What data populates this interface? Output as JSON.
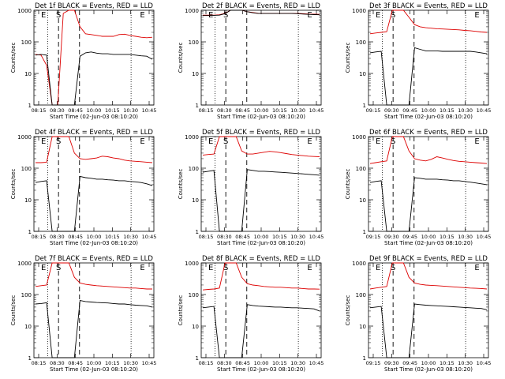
{
  "colors": {
    "events": "#000000",
    "lld": "#dd0000",
    "axis": "#000000"
  },
  "chart_data": [
    {
      "type": "line",
      "title": "Det 1f BLACK = Events, RED = LLD",
      "xlabel": "Start Time (02-Jun-03 08:10:20)",
      "ylabel": "Counts/sec",
      "yscale": "log",
      "ylim": [
        1,
        1000
      ],
      "y_ticks": [
        "1",
        "10",
        "100",
        "1000"
      ],
      "x_ticks": [
        "08:15",
        "08:30",
        "08:45",
        "10:00",
        "10:15",
        "10:30",
        "10:45"
      ],
      "markers": [
        "E",
        "S",
        "E"
      ],
      "series": [
        {
          "values": [
            40,
            38,
            18,
            1,
            1,
            800,
            1000,
            1000,
            300,
            180,
            170,
            160,
            150,
            150,
            150,
            170,
            175,
            160,
            150,
            140,
            135,
            140
          ]
        },
        {
          "values": [
            38,
            40,
            38,
            1,
            1,
            1,
            1,
            1,
            35,
            45,
            48,
            44,
            42,
            42,
            40,
            40,
            40,
            40,
            38,
            36,
            35,
            28
          ]
        }
      ]
    },
    {
      "type": "line",
      "title": "Det 2f BLACK = Events, RED = LLD",
      "xlabel": "Start Time (02-Jun-03 08:10:20)",
      "ylabel": "Counts/sec",
      "yscale": "log",
      "ylim": [
        1,
        1000
      ],
      "y_ticks": [
        "1",
        "10",
        "100",
        "1000"
      ],
      "x_ticks": [
        "08:15",
        "08:30",
        "08:45",
        "10:00",
        "10:15",
        "10:30",
        "10:45"
      ],
      "markers": [
        "E",
        "S",
        "E"
      ],
      "series": [
        {
          "values": [
            700,
            700,
            700,
            720,
            800,
            1000,
            1000,
            1000,
            900,
            850,
            800,
            800,
            800,
            800,
            800,
            800,
            800,
            790,
            780,
            760,
            750,
            740
          ]
        },
        {
          "values": [
            680,
            680,
            690,
            700,
            780,
            1000,
            1000,
            1000,
            900,
            830,
            790,
            790,
            790,
            790,
            790,
            790,
            790,
            780,
            760,
            740,
            730,
            720
          ]
        }
      ]
    },
    {
      "type": "line",
      "title": "Det 3f BLACK = Events, RED = LLD",
      "xlabel": "Start Time (02-Jun-03 08:10:20)",
      "ylabel": "Counts/sec",
      "yscale": "log",
      "ylim": [
        1,
        1000
      ],
      "y_ticks": [
        "1",
        "10",
        "100",
        "1000"
      ],
      "x_ticks": [
        "09:15",
        "09:30",
        "09:45",
        "10:00",
        "10:15",
        "10:30",
        "10:45"
      ],
      "markers": [
        "E",
        "S",
        "E"
      ],
      "series": [
        {
          "values": [
            180,
            190,
            200,
            210,
            1000,
            1000,
            1000,
            600,
            350,
            300,
            280,
            270,
            260,
            255,
            250,
            245,
            240,
            230,
            225,
            215,
            205,
            200
          ]
        },
        {
          "values": [
            45,
            48,
            50,
            1,
            1,
            1,
            1,
            1,
            65,
            58,
            52,
            52,
            52,
            50,
            50,
            50,
            50,
            50,
            50,
            48,
            45,
            42
          ]
        }
      ]
    },
    {
      "type": "line",
      "title": "Det 4f BLACK = Events, RED = LLD",
      "xlabel": "Start Time (02-Jun-03 08:10:20)",
      "ylabel": "Counts/sec",
      "yscale": "log",
      "ylim": [
        1,
        1000
      ],
      "y_ticks": [
        "1",
        "10",
        "100",
        "1000"
      ],
      "x_ticks": [
        "08:15",
        "08:30",
        "08:45",
        "10:00",
        "10:15",
        "10:30",
        "10:45"
      ],
      "markers": [
        "E",
        "S",
        "E"
      ],
      "series": [
        {
          "values": [
            150,
            150,
            155,
            1000,
            1000,
            1000,
            1000,
            300,
            200,
            190,
            200,
            210,
            240,
            230,
            210,
            200,
            180,
            170,
            165,
            160,
            155,
            150
          ]
        },
        {
          "values": [
            35,
            38,
            40,
            1,
            1,
            1,
            1,
            1,
            55,
            50,
            48,
            45,
            45,
            43,
            42,
            40,
            40,
            38,
            37,
            35,
            32,
            28
          ]
        }
      ]
    },
    {
      "type": "line",
      "title": "Det 5f BLACK = Events, RED = LLD",
      "xlabel": "Start Time (02-Jun-03 08:10:20)",
      "ylabel": "Counts/sec",
      "yscale": "log",
      "ylim": [
        1,
        1000
      ],
      "y_ticks": [
        "1",
        "10",
        "100",
        "1000"
      ],
      "x_ticks": [
        "08:15",
        "08:30",
        "08:45",
        "10:00",
        "10:15",
        "10:30",
        "10:45"
      ],
      "markers": [
        "E",
        "S",
        "E"
      ],
      "series": [
        {
          "values": [
            260,
            270,
            280,
            1000,
            1000,
            1000,
            1000,
            350,
            280,
            280,
            300,
            320,
            340,
            330,
            310,
            290,
            270,
            260,
            250,
            240,
            235,
            230
          ]
        },
        {
          "values": [
            75,
            80,
            85,
            1,
            1,
            1,
            1,
            1,
            90,
            85,
            80,
            80,
            78,
            76,
            74,
            72,
            70,
            68,
            66,
            64,
            62,
            60
          ]
        }
      ]
    },
    {
      "type": "line",
      "title": "Det 6f BLACK = Events, RED = LLD",
      "xlabel": "Start Time (02-Jun-03 08:10:20)",
      "ylabel": "Counts/sec",
      "yscale": "log",
      "ylim": [
        1,
        1000
      ],
      "y_ticks": [
        "1",
        "10",
        "100",
        "1000"
      ],
      "x_ticks": [
        "09:15",
        "09:30",
        "09:45",
        "10:00",
        "10:15",
        "10:30",
        "10:45"
      ],
      "markers": [
        "E",
        "S",
        "E"
      ],
      "series": [
        {
          "values": [
            140,
            150,
            160,
            170,
            1000,
            1000,
            1000,
            350,
            200,
            180,
            170,
            190,
            230,
            210,
            190,
            175,
            165,
            160,
            155,
            150,
            145,
            140
          ]
        },
        {
          "values": [
            35,
            38,
            40,
            1,
            1,
            1,
            1,
            1,
            50,
            48,
            45,
            45,
            45,
            43,
            42,
            40,
            40,
            38,
            36,
            34,
            32,
            30
          ]
        }
      ]
    },
    {
      "type": "line",
      "title": "Det 7f BLACK = Events, RED = LLD",
      "xlabel": "Start Time (02-Jun-03 08:10:20)",
      "ylabel": "Counts/sec",
      "yscale": "log",
      "ylim": [
        1,
        1000
      ],
      "y_ticks": [
        "1",
        "10",
        "100",
        "1000"
      ],
      "x_ticks": [
        "08:15",
        "08:30",
        "08:45",
        "10:00",
        "10:15",
        "10:30",
        "10:45"
      ],
      "markers": [
        "E",
        "S",
        "E"
      ],
      "series": [
        {
          "values": [
            180,
            190,
            200,
            1000,
            1000,
            1000,
            1000,
            350,
            230,
            210,
            200,
            190,
            185,
            180,
            175,
            170,
            165,
            160,
            160,
            155,
            150,
            150
          ]
        },
        {
          "values": [
            50,
            52,
            55,
            1,
            1,
            1,
            1,
            1,
            65,
            60,
            58,
            56,
            55,
            54,
            52,
            50,
            50,
            48,
            46,
            45,
            44,
            40
          ]
        }
      ]
    },
    {
      "type": "line",
      "title": "Det 8f BLACK = Events, RED = LLD",
      "xlabel": "Start Time (02-Jun-03 08:10:20)",
      "ylabel": "Counts/sec",
      "yscale": "log",
      "ylim": [
        1,
        1000
      ],
      "y_ticks": [
        "1",
        "10",
        "100",
        "1000"
      ],
      "x_ticks": [
        "08:15",
        "08:30",
        "08:45",
        "10:00",
        "10:15",
        "10:30",
        "10:45"
      ],
      "markers": [
        "E",
        "S",
        "E"
      ],
      "series": [
        {
          "values": [
            140,
            145,
            150,
            160,
            1000,
            1000,
            1000,
            350,
            220,
            200,
            190,
            180,
            175,
            170,
            170,
            165,
            160,
            160,
            155,
            150,
            150,
            148
          ]
        },
        {
          "values": [
            38,
            40,
            42,
            1,
            1,
            1,
            1,
            1,
            48,
            45,
            43,
            42,
            41,
            40,
            40,
            39,
            38,
            38,
            37,
            36,
            35,
            30
          ]
        }
      ]
    },
    {
      "type": "line",
      "title": "Det 9f BLACK = Events, RED = LLD",
      "xlabel": "Start Time (02-Jun-03 08:10:20)",
      "ylabel": "Counts/sec",
      "yscale": "log",
      "ylim": [
        1,
        1000
      ],
      "y_ticks": [
        "1",
        "10",
        "100",
        "1000"
      ],
      "x_ticks": [
        "09:15",
        "09:30",
        "09:45",
        "10:00",
        "10:15",
        "10:30",
        "10:45"
      ],
      "markers": [
        "E",
        "S",
        "E"
      ],
      "series": [
        {
          "values": [
            150,
            160,
            170,
            180,
            1000,
            1000,
            1000,
            350,
            230,
            210,
            200,
            195,
            190,
            185,
            180,
            175,
            170,
            165,
            160,
            158,
            155,
            150
          ]
        },
        {
          "values": [
            38,
            40,
            42,
            1,
            1,
            1,
            1,
            1,
            50,
            48,
            46,
            45,
            44,
            43,
            42,
            41,
            40,
            39,
            38,
            37,
            36,
            33
          ]
        }
      ]
    }
  ]
}
